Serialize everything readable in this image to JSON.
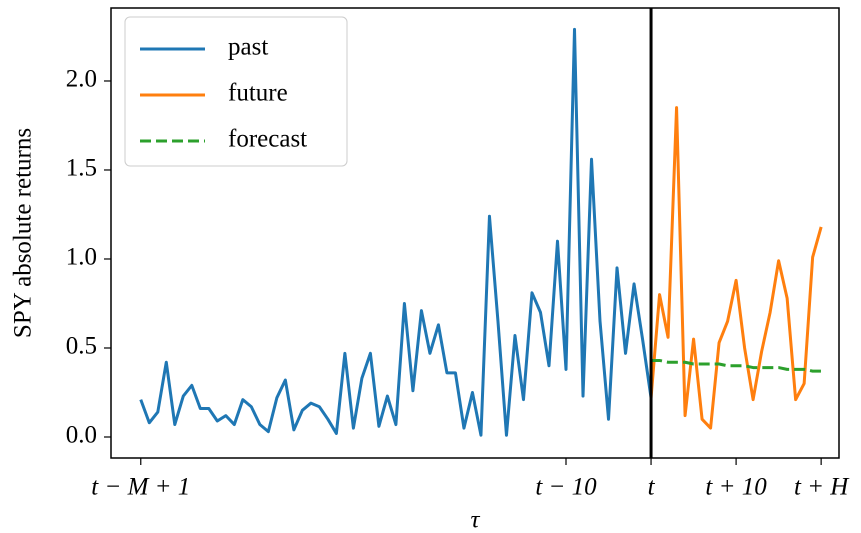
{
  "chart_data": {
    "type": "line",
    "xlabel": "τ",
    "ylabel": "SPY absolute returns",
    "xlim": [
      -63.5,
      22.1
    ],
    "ylim": [
      -0.118,
      2.41
    ],
    "xticks": [
      {
        "value": -60,
        "label": "t − M + 1"
      },
      {
        "value": -10,
        "label": "t − 10"
      },
      {
        "value": 0,
        "label": "t"
      },
      {
        "value": 10,
        "label": "t + 10"
      },
      {
        "value": 20,
        "label": "t + H"
      }
    ],
    "yticks": [
      {
        "value": 0,
        "label": "0.0"
      },
      0.5,
      {
        "value": 1,
        "label": "1.0"
      },
      1.5,
      {
        "value": 2,
        "label": "2.0"
      }
    ],
    "vline_x": 0,
    "vline_color": "#000000",
    "legend": "upper left",
    "series": [
      {
        "name": "past",
        "color": "#1f77b4",
        "dash": false,
        "x": [
          -60,
          -59,
          -58,
          -57,
          -56,
          -55,
          -54,
          -53,
          -52,
          -51,
          -50,
          -49,
          -48,
          -47,
          -46,
          -45,
          -44,
          -43,
          -42,
          -41,
          -40,
          -39,
          -38,
          -37,
          -36,
          -35,
          -34,
          -33,
          -32,
          -31,
          -30,
          -29,
          -28,
          -27,
          -26,
          -25,
          -24,
          -23,
          -22,
          -21,
          -20,
          -19,
          -18,
          -17,
          -16,
          -15,
          -14,
          -13,
          -12,
          -11,
          -10,
          -9,
          -8,
          -7,
          -6,
          -5,
          -4,
          -3,
          -2,
          -1,
          0
        ],
        "values": [
          0.21,
          0.08,
          0.14,
          0.42,
          0.07,
          0.23,
          0.29,
          0.16,
          0.16,
          0.09,
          0.12,
          0.07,
          0.21,
          0.17,
          0.07,
          0.03,
          0.22,
          0.32,
          0.04,
          0.15,
          0.19,
          0.17,
          0.1,
          0.02,
          0.47,
          0.05,
          0.33,
          0.47,
          0.06,
          0.23,
          0.07,
          0.75,
          0.26,
          0.71,
          0.47,
          0.63,
          0.36,
          0.36,
          0.05,
          0.25,
          0.01,
          1.24,
          0.65,
          0.01,
          0.57,
          0.21,
          0.81,
          0.7,
          0.4,
          1.1,
          0.38,
          2.29,
          0.23,
          1.56,
          0.65,
          0.1,
          0.95,
          0.47,
          0.86,
          0.55,
          0.22
        ]
      },
      {
        "name": "future",
        "color": "#ff7f0e",
        "dash": false,
        "x": [
          0,
          1,
          2,
          3,
          4,
          5,
          6,
          7,
          8,
          9,
          10,
          11,
          12,
          13,
          14,
          15,
          16,
          17,
          18,
          19,
          20
        ],
        "values": [
          0.22,
          0.8,
          0.56,
          1.85,
          0.12,
          0.55,
          0.1,
          0.05,
          0.53,
          0.65,
          0.88,
          0.5,
          0.21,
          0.48,
          0.7,
          0.99,
          0.78,
          0.21,
          0.3,
          1.01,
          1.18
        ]
      },
      {
        "name": "forecast",
        "color": "#2ca02c",
        "dash": true,
        "x": [
          0,
          1,
          2,
          3,
          4,
          5,
          6,
          7,
          8,
          9,
          10,
          11,
          12,
          13,
          14,
          15,
          16,
          17,
          18,
          19,
          20
        ],
        "values": [
          0.43,
          0.43,
          0.42,
          0.42,
          0.42,
          0.41,
          0.41,
          0.41,
          0.41,
          0.4,
          0.4,
          0.4,
          0.39,
          0.39,
          0.39,
          0.39,
          0.38,
          0.38,
          0.38,
          0.37,
          0.37
        ]
      }
    ]
  }
}
